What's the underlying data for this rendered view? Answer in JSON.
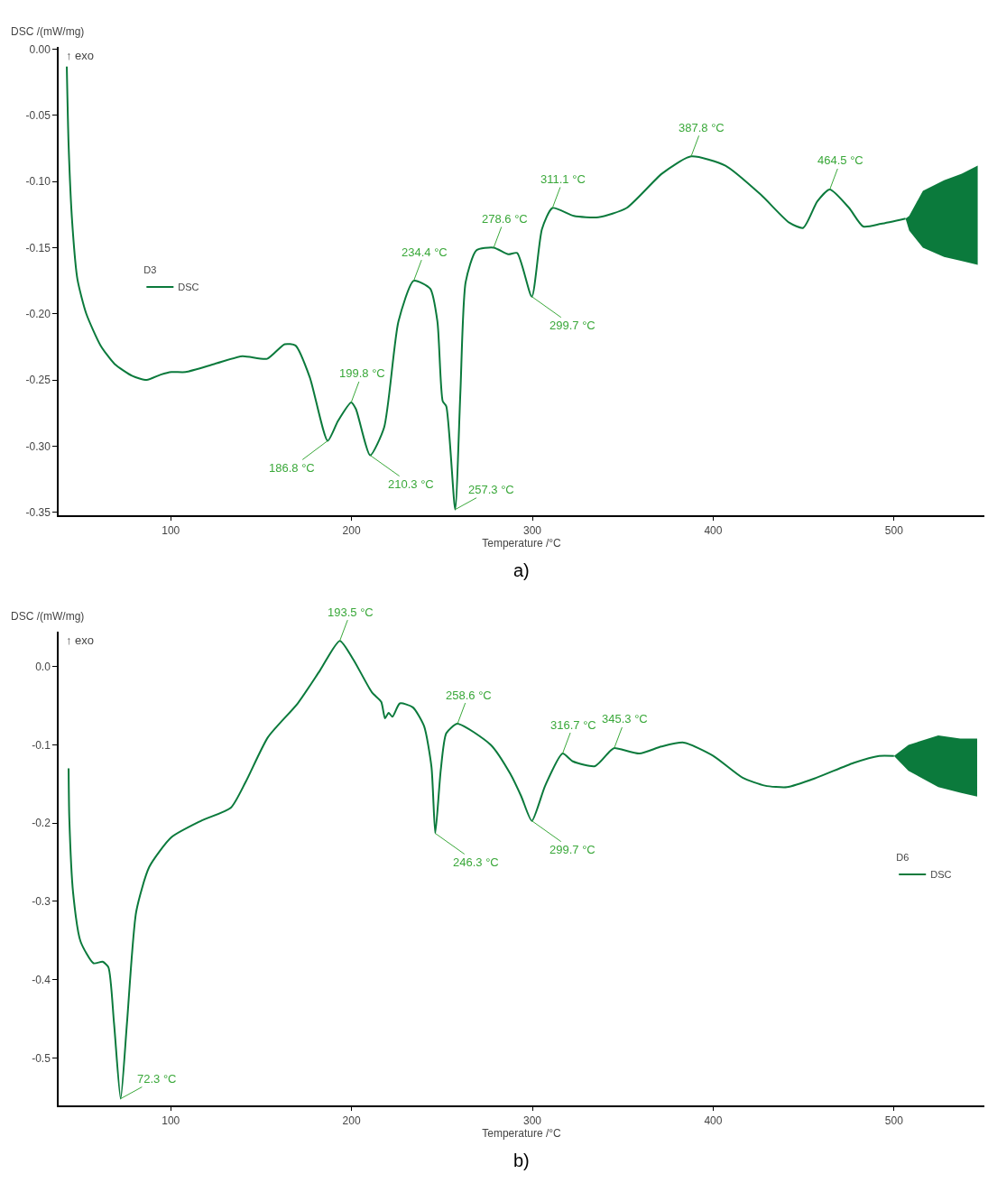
{
  "chart_data": [
    {
      "type": "line",
      "xlabel": "Temperature /°C",
      "ylabel": "DSC /(mW/mg)",
      "legend_title": "D3",
      "legend": "left",
      "marker": "none",
      "line_style": "solid",
      "xlim": [
        38,
        550
      ],
      "xticks": [
        100,
        200,
        300,
        400,
        500
      ],
      "ylim": [
        -0.352,
        0.002
      ],
      "yticks": [
        {
          "value": 0,
          "label": "0.00"
        },
        {
          "value": -0.05,
          "label": "-0.05"
        },
        {
          "value": -0.1,
          "label": "-0.10"
        },
        {
          "value": -0.15,
          "label": "-0.15"
        },
        {
          "value": -0.2,
          "label": "-0.20"
        },
        {
          "value": -0.25,
          "label": "-0.25"
        },
        {
          "value": -0.3,
          "label": "-0.30"
        },
        {
          "value": -0.35,
          "label": "-0.35"
        }
      ],
      "series": [
        {
          "name": "DSC",
          "color": "#0b7a3c",
          "x": [
            42.5,
            43.5,
            45.5,
            48.4,
            53.3,
            61.2,
            69,
            78.8,
            86.7,
            94.5,
            100.4,
            108.2,
            124,
            139.6,
            153.3,
            163,
            169,
            176.9,
            186.8,
            192.5,
            199.8,
            202.4,
            210.3,
            218,
            225.9,
            234.4,
            243.5,
            247.5,
            250.4,
            252.4,
            257.3,
            260.2,
            263.1,
            269,
            278.6,
            286.7,
            291.6,
            299.7,
            305.3,
            311.1,
            322.9,
            336.5,
            352.1,
            371.7,
            387.8,
            406.8,
            426.4,
            442,
            449.8,
            457.6,
            464.5,
            475.2,
            483,
            492.8,
            506.4,
            508.4,
            516,
            527.7,
            537.5,
            546.3
          ],
          "values": [
            -0.013,
            -0.072,
            -0.131,
            -0.174,
            -0.2,
            -0.224,
            -0.238,
            -0.247,
            -0.25,
            -0.246,
            -0.244,
            -0.244,
            -0.238,
            -0.232,
            -0.234,
            -0.223,
            -0.224,
            -0.248,
            -0.296,
            -0.281,
            -0.267,
            -0.272,
            -0.307,
            -0.286,
            -0.206,
            -0.175,
            -0.181,
            -0.206,
            -0.266,
            -0.27,
            -0.348,
            -0.259,
            -0.176,
            -0.152,
            -0.15,
            -0.155,
            -0.154,
            -0.187,
            -0.136,
            -0.12,
            -0.126,
            -0.127,
            -0.12,
            -0.094,
            -0.081,
            -0.088,
            -0.11,
            -0.131,
            -0.135,
            -0.115,
            -0.106,
            -0.12,
            -0.134,
            -0.132,
            -0.128,
            null,
            null,
            null,
            null,
            null
          ],
          "lower": [
            null,
            null,
            null,
            null,
            null,
            null,
            null,
            null,
            null,
            null,
            null,
            null,
            null,
            null,
            null,
            null,
            null,
            null,
            null,
            null,
            null,
            null,
            null,
            null,
            null,
            null,
            null,
            null,
            null,
            null,
            null,
            null,
            null,
            null,
            null,
            null,
            null,
            null,
            null,
            null,
            null,
            null,
            null,
            null,
            null,
            null,
            null,
            null,
            null,
            null,
            null,
            null,
            null,
            null,
            -0.128,
            -0.137,
            -0.15,
            -0.157,
            -0.16,
            -0.163
          ],
          "upper": [
            null,
            null,
            null,
            null,
            null,
            null,
            null,
            null,
            null,
            null,
            null,
            null,
            null,
            null,
            null,
            null,
            null,
            null,
            null,
            null,
            null,
            null,
            null,
            null,
            null,
            null,
            null,
            null,
            null,
            null,
            null,
            null,
            null,
            null,
            null,
            null,
            null,
            null,
            null,
            null,
            null,
            null,
            null,
            null,
            null,
            null,
            null,
            null,
            null,
            null,
            null,
            null,
            null,
            null,
            -0.128,
            -0.126,
            -0.107,
            -0.099,
            -0.094,
            -0.088
          ]
        }
      ],
      "annotations": [
        "↑ exo",
        "a)",
        {
          "text": "186.8 °C",
          "x": 186.8,
          "y": -0.296
        },
        {
          "text": "199.8 °C",
          "x": 199.8,
          "y": -0.267
        },
        {
          "text": "210.3 °C",
          "x": 210.3,
          "y": -0.307
        },
        {
          "text": "234.4 °C",
          "x": 234.4,
          "y": -0.175
        },
        {
          "text": "257.3 °C",
          "x": 257.3,
          "y": -0.348
        },
        {
          "text": "278.6 °C",
          "x": 278.6,
          "y": -0.15
        },
        {
          "text": "299.7 °C",
          "x": 299.7,
          "y": -0.187
        },
        {
          "text": "311.1 °C",
          "x": 311.1,
          "y": -0.12
        },
        {
          "text": "387.8 °C",
          "x": 387.8,
          "y": -0.081
        },
        {
          "text": "464.5 °C",
          "x": 464.5,
          "y": -0.106
        }
      ]
    },
    {
      "type": "line",
      "xlabel": "Temperature /°C",
      "ylabel": "DSC /(mW/mg)",
      "legend_title": "D6",
      "legend": "right",
      "marker": "none",
      "line_style": "solid",
      "xlim": [
        38,
        550
      ],
      "xticks": [
        100,
        200,
        300,
        400,
        500
      ],
      "ylim": [
        -0.56,
        0.045
      ],
      "yticks": [
        {
          "value": 0,
          "label": "0.0"
        },
        -0.1,
        -0.2,
        -0.3,
        -0.4,
        -0.5
      ],
      "series": [
        {
          "name": "DSC",
          "color": "#0b7a3c",
          "x": [
            43.5,
            43.9,
            46,
            50.1,
            57.3,
            62.3,
            65.5,
            68.6,
            72.3,
            75.8,
            80.9,
            88.1,
            100.4,
            116.8,
            133.3,
            141.5,
            153.8,
            170.2,
            182.5,
            193.5,
            201,
            211.3,
            216.4,
            218.5,
            220.5,
            222.6,
            226.7,
            233.9,
            240.1,
            244.2,
            246.3,
            249.3,
            252.4,
            258.6,
            277,
            287.8,
            293.9,
            299.7,
            307.1,
            316.7,
            322.4,
            334.7,
            342.9,
            345.3,
            359.2,
            371.4,
            383.7,
            400,
            416.3,
            428.6,
            440.8,
            457.1,
            477.6,
            491.8,
            500,
            508,
            524.5,
            536.7,
            546
          ],
          "values": [
            -0.13,
            -0.194,
            -0.289,
            -0.351,
            -0.379,
            -0.377,
            -0.384,
            -0.455,
            -0.552,
            -0.455,
            -0.313,
            -0.256,
            -0.218,
            -0.197,
            -0.18,
            -0.147,
            -0.09,
            -0.047,
            -0.005,
            0.033,
            0.009,
            -0.033,
            -0.045,
            -0.066,
            -0.059,
            -0.064,
            -0.047,
            -0.052,
            -0.076,
            -0.128,
            -0.213,
            -0.133,
            -0.085,
            -0.073,
            -0.1,
            -0.137,
            -0.166,
            -0.197,
            -0.152,
            -0.111,
            -0.121,
            -0.127,
            -0.108,
            -0.104,
            -0.111,
            -0.102,
            -0.097,
            -0.114,
            -0.142,
            -0.152,
            -0.154,
            -0.142,
            -0.123,
            -0.114,
            -0.114,
            null,
            null,
            null,
            null
          ],
          "lower": [
            null,
            null,
            null,
            null,
            null,
            null,
            null,
            null,
            null,
            null,
            null,
            null,
            null,
            null,
            null,
            null,
            null,
            null,
            null,
            null,
            null,
            null,
            null,
            null,
            null,
            null,
            null,
            null,
            null,
            null,
            null,
            null,
            null,
            null,
            null,
            null,
            null,
            null,
            null,
            null,
            null,
            null,
            null,
            null,
            null,
            null,
            null,
            null,
            null,
            null,
            null,
            null,
            null,
            null,
            -0.114,
            -0.133,
            -0.154,
            -0.161,
            -0.166
          ],
          "upper": [
            null,
            null,
            null,
            null,
            null,
            null,
            null,
            null,
            null,
            null,
            null,
            null,
            null,
            null,
            null,
            null,
            null,
            null,
            null,
            null,
            null,
            null,
            null,
            null,
            null,
            null,
            null,
            null,
            null,
            null,
            null,
            null,
            null,
            null,
            null,
            null,
            null,
            null,
            null,
            null,
            null,
            null,
            null,
            null,
            null,
            null,
            null,
            null,
            null,
            null,
            null,
            null,
            null,
            null,
            -0.114,
            -0.1,
            -0.088,
            -0.092,
            -0.092
          ]
        }
      ],
      "annotations": [
        "↑ exo",
        "b)",
        {
          "text": "72.3 °C",
          "x": 72.3,
          "y": -0.552
        },
        {
          "text": "193.5 °C",
          "x": 193.5,
          "y": 0.033
        },
        {
          "text": "246.3 °C",
          "x": 246.3,
          "y": -0.213
        },
        {
          "text": "258.6 °C",
          "x": 258.6,
          "y": -0.073
        },
        {
          "text": "299.7 °C",
          "x": 299.7,
          "y": -0.197
        },
        {
          "text": "316.7 °C",
          "x": 316.7,
          "y": -0.111
        },
        {
          "text": "345.3 °C",
          "x": 345.3,
          "y": -0.104
        }
      ]
    }
  ]
}
